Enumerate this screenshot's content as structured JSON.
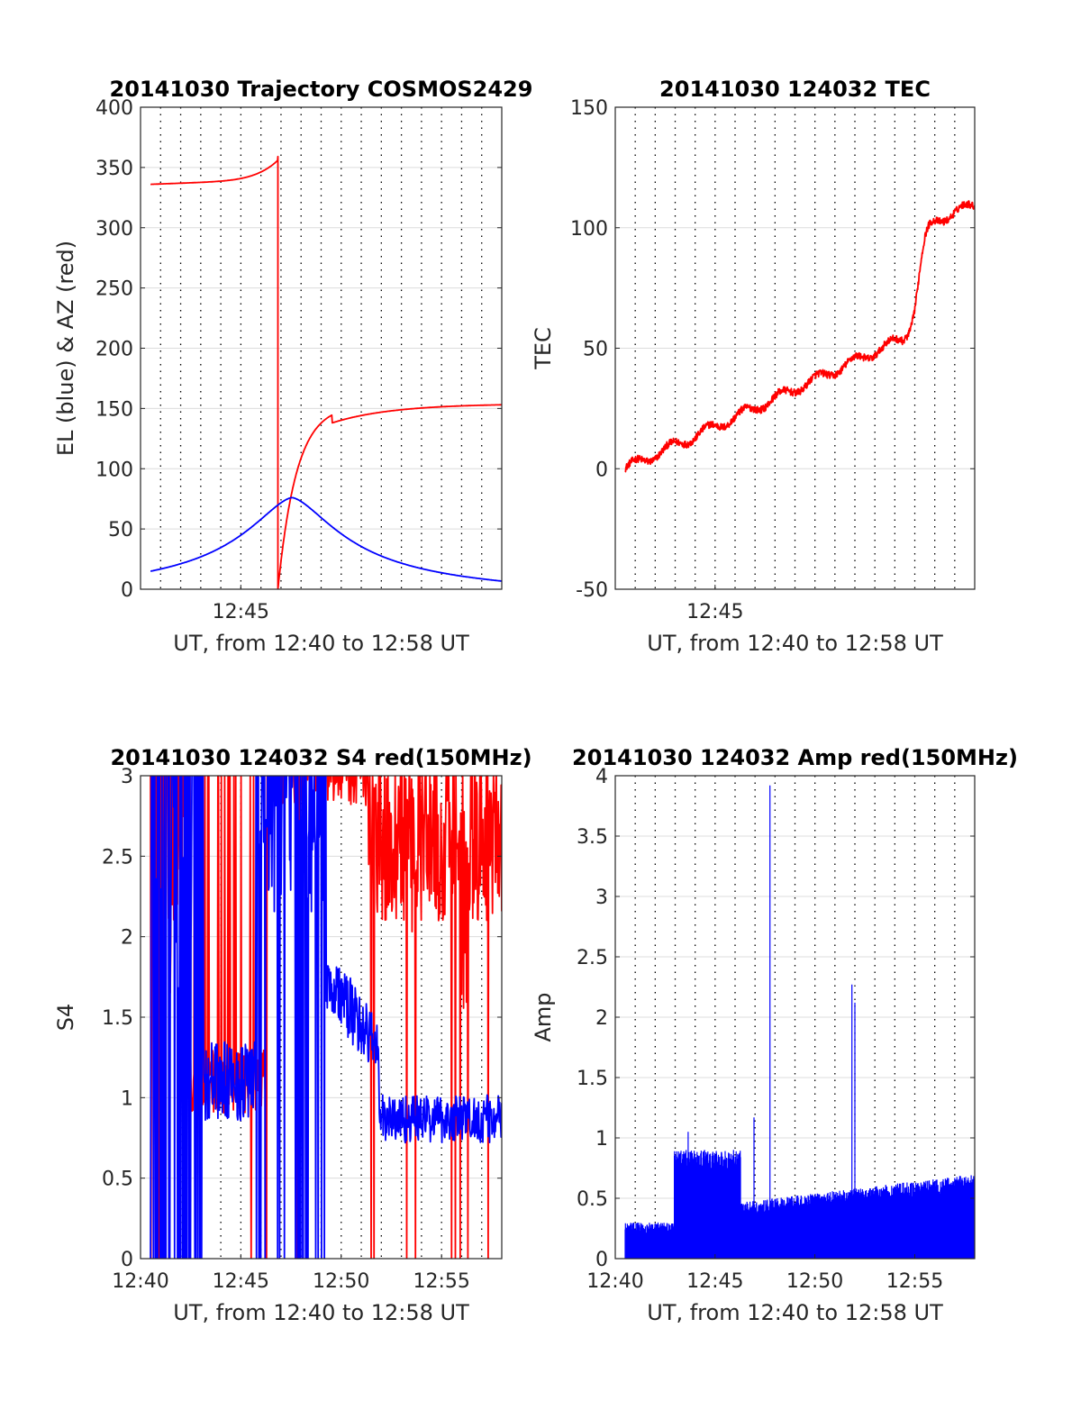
{
  "colors": {
    "red": "#ff0000",
    "blue": "#0000ff",
    "grid": "#dcdcdc",
    "axis": "#262626"
  },
  "chart_data": [
    {
      "type": "line",
      "title": "20141030 Trajectory COSMOS2429",
      "xlabel": "UT, from 12:40 to 12:58 UT",
      "ylabel": "EL (blue) & AZ (red)",
      "xlim": [
        12.6667,
        12.9667
      ],
      "ylim": [
        0,
        400
      ],
      "yticks": [
        0,
        50,
        100,
        150,
        200,
        250,
        300,
        350,
        400
      ],
      "xticks": [
        {
          "t": 12.75,
          "label": "12:45"
        }
      ],
      "series": [
        {
          "name": "AZ (red)",
          "color": "#ff0000",
          "shape": "azimuth",
          "t0": 12.675,
          "t1": 12.9667
        },
        {
          "name": "EL (blue)",
          "color": "#0000ff",
          "shape": "elevation",
          "t0": 12.675,
          "t1": 12.9667
        }
      ]
    },
    {
      "type": "line",
      "title": "20141030 124032 TEC",
      "xlabel": "UT, from 12:40 to 12:58 UT",
      "ylabel": "TEC",
      "xlim": [
        12.6667,
        12.9667
      ],
      "ylim": [
        -50,
        150
      ],
      "yticks": [
        -50,
        0,
        50,
        100,
        150
      ],
      "xticks": [
        {
          "t": 12.75,
          "label": "12:45"
        }
      ],
      "series": [
        {
          "name": "TEC",
          "color": "#ff0000",
          "shape": "tec",
          "t0": 12.675,
          "t1": 12.9667
        }
      ]
    },
    {
      "type": "line",
      "title": "20141030 124032 S4 red(150MHz)",
      "xlabel": "UT, from 12:40 to 12:58 UT",
      "ylabel": "S4",
      "xlim": [
        12.6667,
        12.9667
      ],
      "ylim": [
        0,
        3
      ],
      "yticks": [
        0,
        0.5,
        1,
        1.5,
        2,
        2.5,
        3
      ],
      "xticks": [
        {
          "t": 12.6667,
          "label": "12:40"
        },
        {
          "t": 12.75,
          "label": "12:45"
        },
        {
          "t": 12.8333,
          "label": "12:50"
        },
        {
          "t": 12.9167,
          "label": "12:55"
        }
      ],
      "series": [
        {
          "name": "S4 red(150MHz)",
          "color": "#ff0000",
          "shape": "s4red",
          "t0": 12.675,
          "t1": 12.9667
        },
        {
          "name": "S4",
          "color": "#0000ff",
          "shape": "s4blue",
          "t0": 12.675,
          "t1": 12.9667
        }
      ]
    },
    {
      "type": "line",
      "title": "20141030 124032 Amp red(150MHz)",
      "xlabel": "UT, from 12:40 to 12:58 UT",
      "ylabel": "Amp",
      "xlim": [
        12.6667,
        12.9667
      ],
      "ylim": [
        0,
        4
      ],
      "yticks": [
        0,
        0.5,
        1,
        1.5,
        2,
        2.5,
        3,
        3.5,
        4
      ],
      "xticks": [
        {
          "t": 12.6667,
          "label": "12:40"
        },
        {
          "t": 12.75,
          "label": "12:45"
        },
        {
          "t": 12.8333,
          "label": "12:50"
        },
        {
          "t": 12.9167,
          "label": "12:55"
        }
      ],
      "series": [
        {
          "name": "Amp red(150MHz)",
          "color": "#0000ff",
          "shape": "amp",
          "t0": 12.675,
          "t1": 12.9667,
          "peaks": [
            {
              "t": 12.7275,
              "value": 1.05
            },
            {
              "t": 12.7825,
              "value": 1.17
            },
            {
              "t": 12.7958,
              "value": 3.92
            },
            {
              "t": 12.8642,
              "value": 2.27
            },
            {
              "t": 12.8667,
              "value": 2.12
            }
          ]
        }
      ]
    }
  ]
}
